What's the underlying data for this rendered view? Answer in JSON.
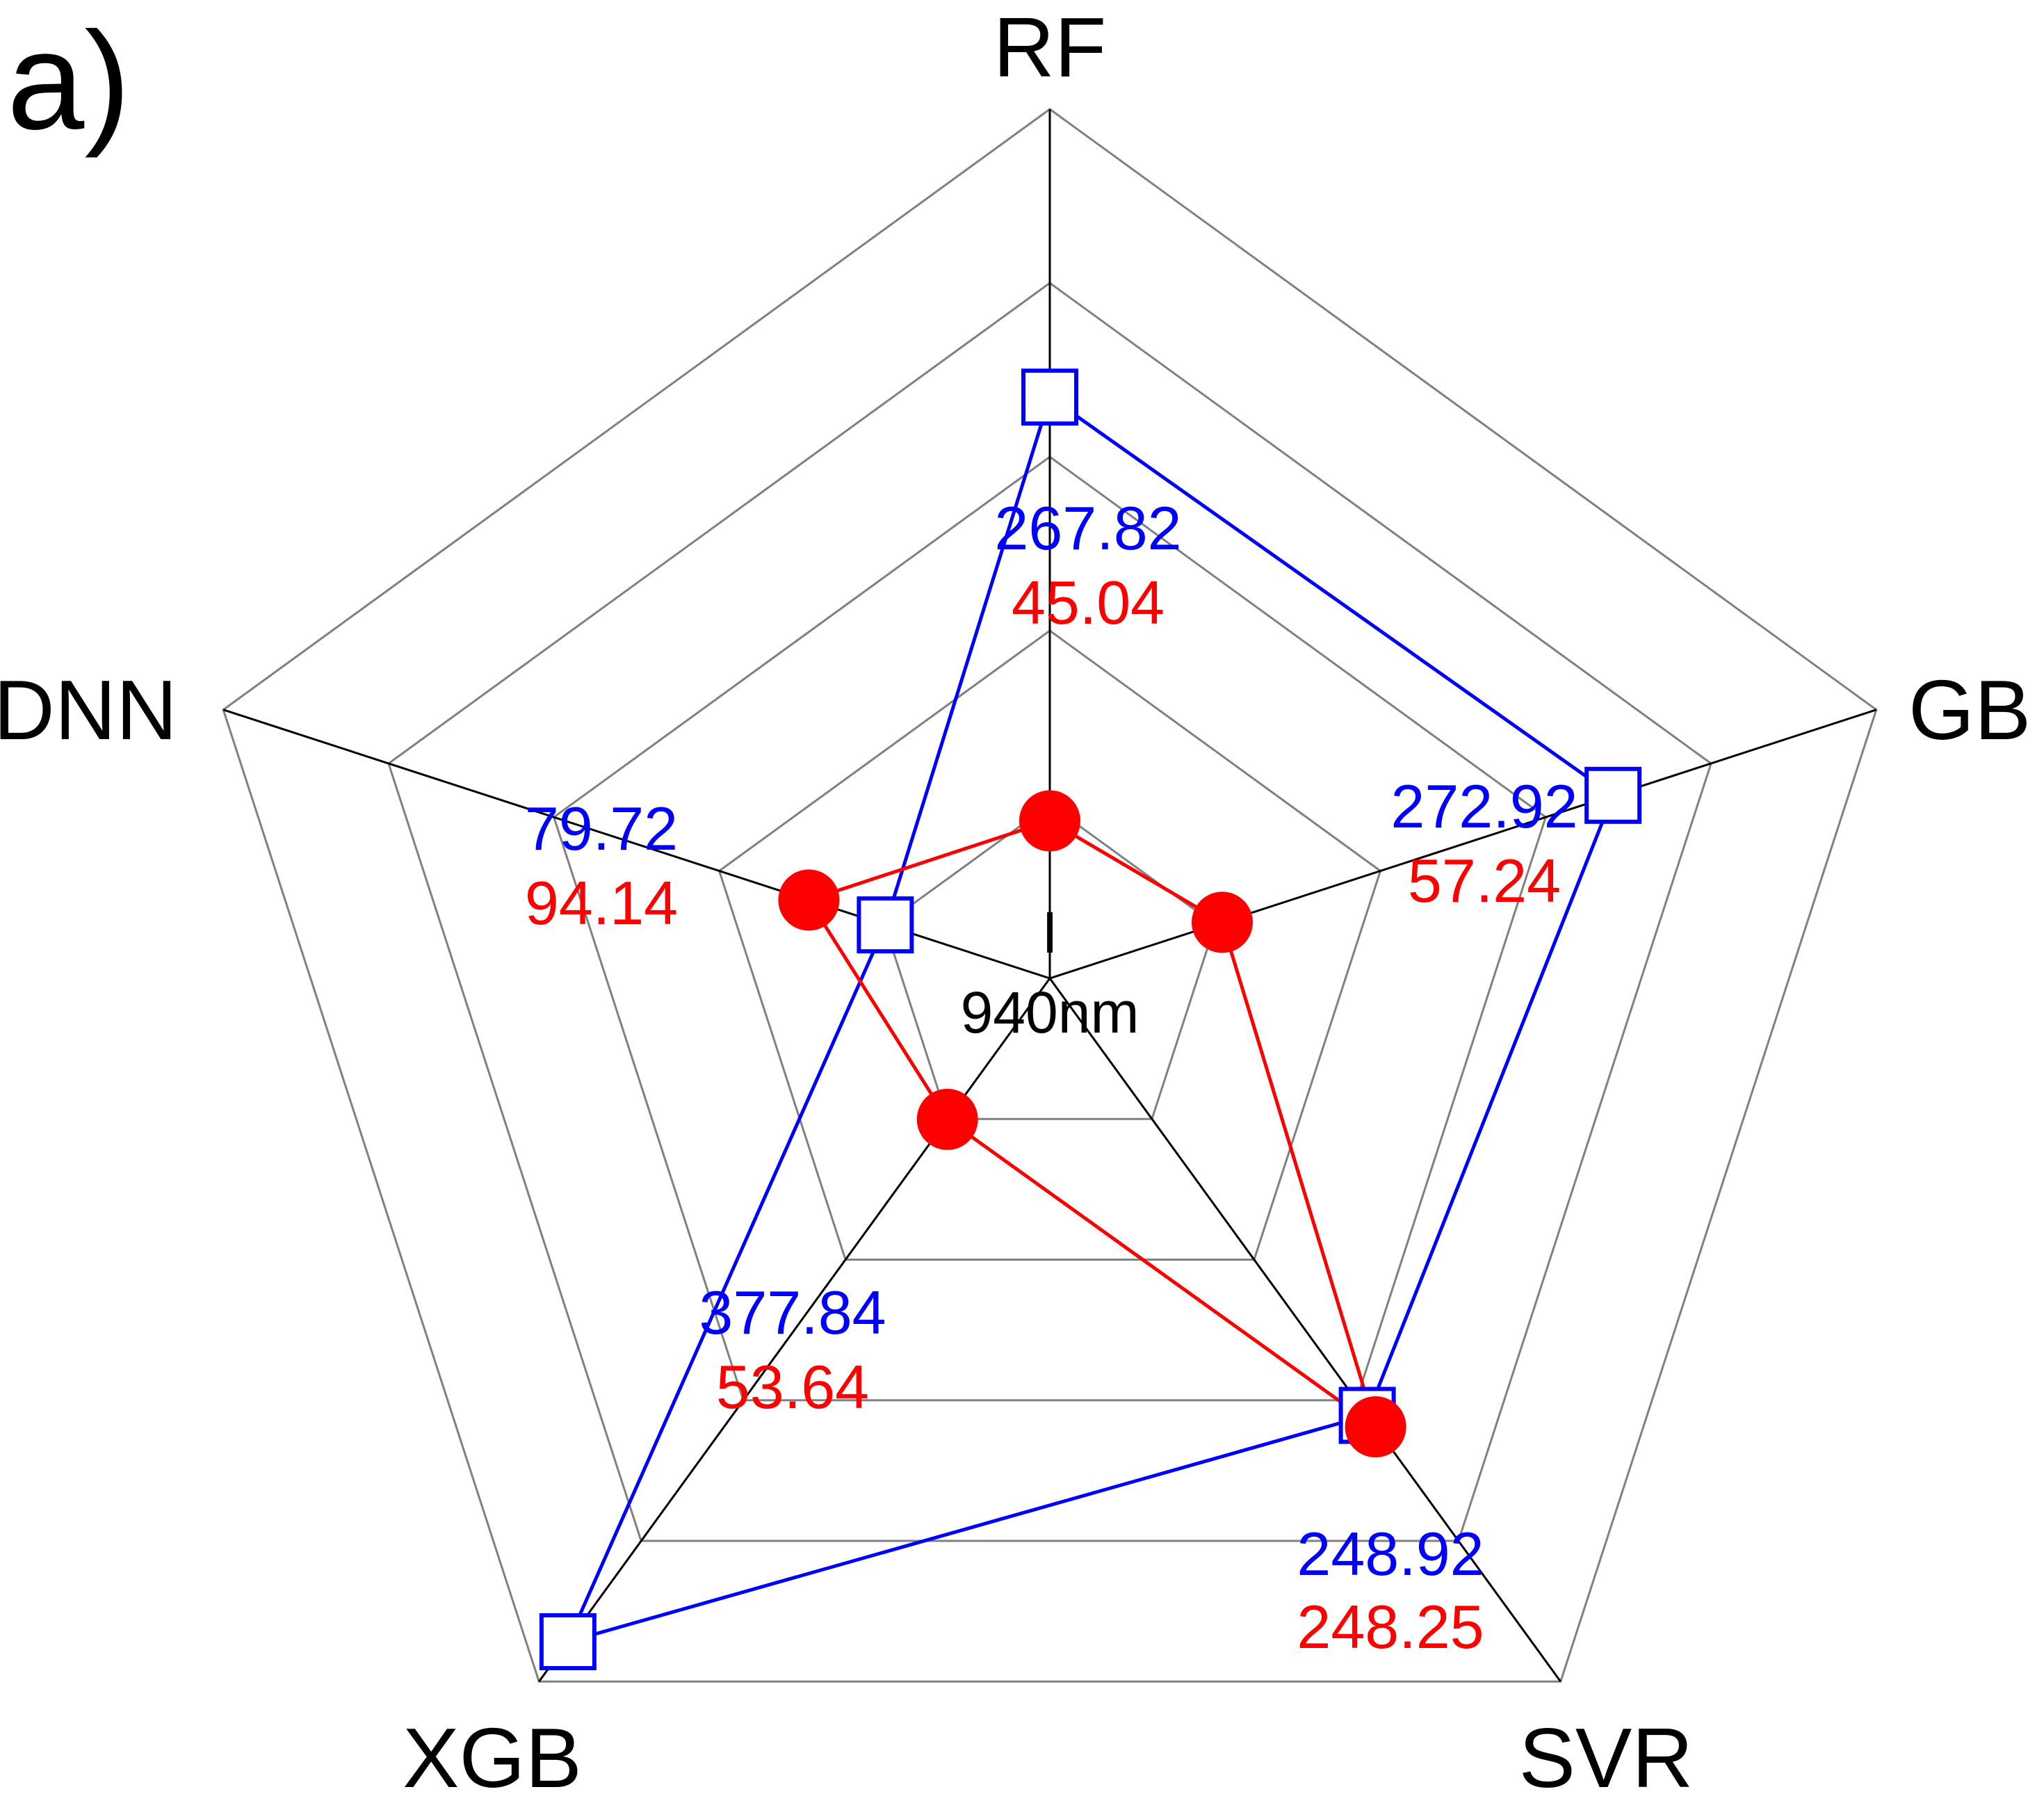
{
  "panel_label": "a)",
  "center_label": {
    "line1": "I",
    "line2": "940nm"
  },
  "chart_data": {
    "type": "radar",
    "axes": [
      "RF",
      "GB",
      "SVR",
      "XGB",
      "DNN"
    ],
    "rings": 5,
    "grid": true,
    "series": [
      {
        "color": "#0000ff",
        "marker": "open-square",
        "values": [
          267.82,
          272.92,
          248.92,
          377.84,
          79.72
        ]
      },
      {
        "color": "#ff0000",
        "marker": "filled-circle",
        "values": [
          45.04,
          57.24,
          248.25,
          53.64,
          94.14
        ]
      }
    ],
    "value_labels": [
      {
        "axis": "RF",
        "blue": "267.82",
        "red": "45.04"
      },
      {
        "axis": "GB",
        "blue": "272.92",
        "red": "57.24"
      },
      {
        "axis": "SVR",
        "blue": "248.92",
        "red": "248.25"
      },
      {
        "axis": "XGB",
        "blue": "377.84",
        "red": "53.64"
      },
      {
        "axis": "DNN",
        "blue": "79.72",
        "red": "94.14"
      }
    ]
  }
}
